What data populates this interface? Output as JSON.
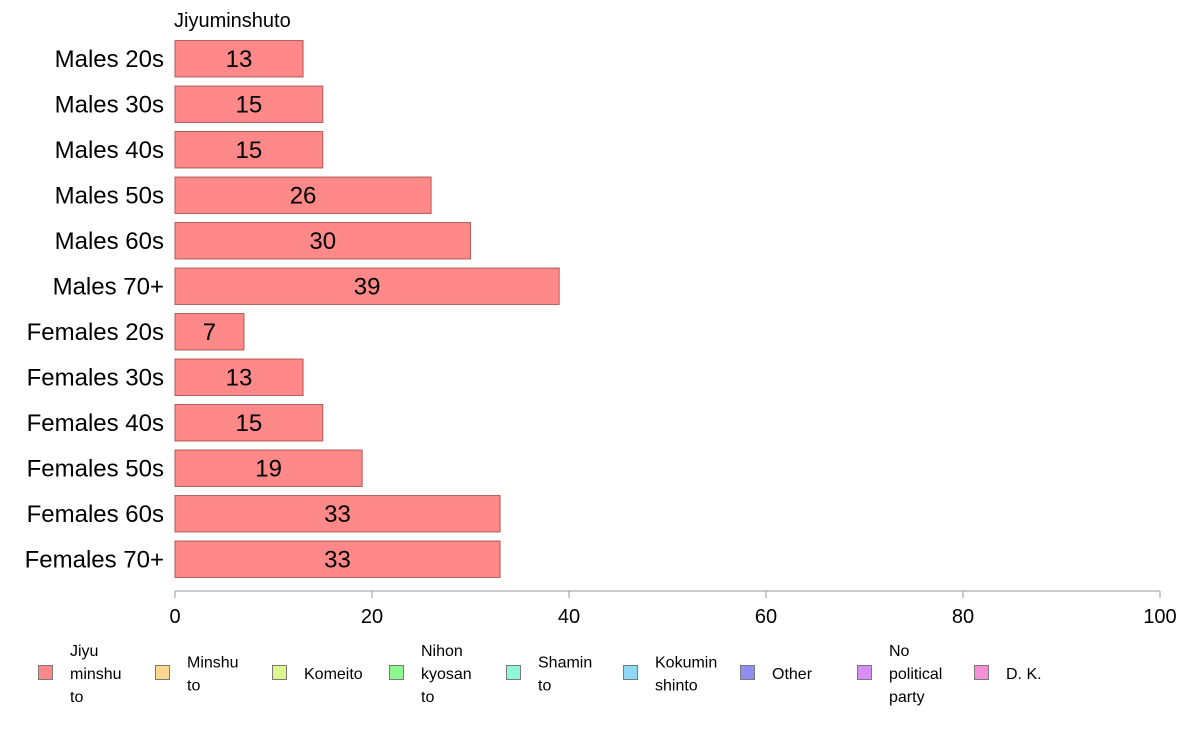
{
  "chart_data": {
    "type": "bar",
    "orientation": "horizontal",
    "title": "Jiyuminshuto",
    "categories": [
      "Males 20s",
      "Males 30s",
      "Males 40s",
      "Males 50s",
      "Males 60s",
      "Males 70+",
      "Females 20s",
      "Females 30s",
      "Females 40s",
      "Females 50s",
      "Females 60s",
      "Females 70+"
    ],
    "values": [
      13,
      15,
      15,
      26,
      30,
      39,
      7,
      13,
      15,
      19,
      33,
      33
    ],
    "value_labels": [
      "13",
      "15",
      "15",
      "26",
      "30",
      "39",
      "7",
      "13",
      "15",
      "19",
      "33",
      "33"
    ],
    "xlim": [
      0,
      100
    ],
    "xticks": [
      "0",
      "20",
      "40",
      "60",
      "80",
      "100"
    ],
    "xlabel": "",
    "ylabel": "",
    "grid": false,
    "bar_color": "#ff8888",
    "bar_border_color": "#b05a5a",
    "legend_position": "bottom",
    "legend": [
      {
        "lines": [
          "Jiyu",
          "minshu",
          "to"
        ],
        "color": "#ff8888"
      },
      {
        "lines": [
          "Minshu",
          "to"
        ],
        "color": "#ffd890"
      },
      {
        "lines": [
          "Komeito"
        ],
        "color": "#ddf78f"
      },
      {
        "lines": [
          "Nihon",
          "kyosan",
          "to"
        ],
        "color": "#8ef78e"
      },
      {
        "lines": [
          "Shamin",
          "to"
        ],
        "color": "#8ff7d8"
      },
      {
        "lines": [
          "Kokumin",
          "shinto"
        ],
        "color": "#8fd8f7"
      },
      {
        "lines": [
          "Other"
        ],
        "color": "#8f8ff2"
      },
      {
        "lines": [
          "No",
          "political",
          "party"
        ],
        "color": "#d88ff5"
      },
      {
        "lines": [
          "D. K."
        ],
        "color": "#f78fd8"
      }
    ]
  }
}
